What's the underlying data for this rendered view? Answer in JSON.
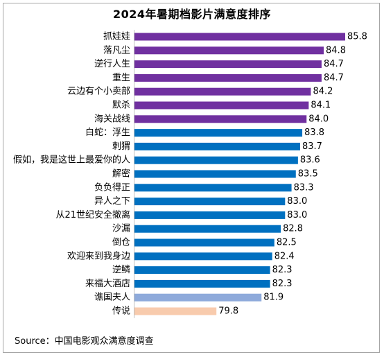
{
  "chart_data": {
    "type": "bar",
    "orientation": "horizontal",
    "title": "2024年暑期档影片满意度排序",
    "categories": [
      "抓娃娃",
      "落凡尘",
      "逆行人生",
      "重生",
      "云边有个小卖部",
      "默杀",
      "海关战线",
      "白蛇：浮生",
      "刺猬",
      "假如，我是这世上最爱你的人",
      "解密",
      "负负得正",
      "异人之下",
      "从21世纪安全撤离",
      "沙漏",
      "倒仓",
      "欢迎来到我身边",
      "逆鳞",
      "来福大酒店",
      "谯国夫人",
      "传说"
    ],
    "values": [
      85.8,
      84.8,
      84.7,
      84.7,
      84.2,
      84.1,
      84.0,
      83.8,
      83.7,
      83.6,
      83.5,
      83.3,
      83.0,
      83.0,
      82.8,
      82.5,
      82.4,
      82.3,
      82.3,
      81.9,
      79.8
    ],
    "value_labels": [
      "85.8",
      "84.8",
      "84.7",
      "84.7",
      "84.2",
      "84.1",
      "84.0",
      "83.8",
      "83.7",
      "83.6",
      "83.5",
      "83.3",
      "83.0",
      "83.0",
      "82.8",
      "82.5",
      "82.4",
      "82.3",
      "82.3",
      "81.9",
      "79.8"
    ],
    "colors": [
      "#7030a0",
      "#7030a0",
      "#7030a0",
      "#7030a0",
      "#7030a0",
      "#7030a0",
      "#7030a0",
      "#0070c0",
      "#0070c0",
      "#0070c0",
      "#0070c0",
      "#0070c0",
      "#0070c0",
      "#0070c0",
      "#0070c0",
      "#0070c0",
      "#0070c0",
      "#0070c0",
      "#0070c0",
      "#8eaadb",
      "#f8cbad"
    ],
    "xlim": [
      75.95,
      85.8
    ],
    "grid": false,
    "legend": "none",
    "source": "Source：中国电影观众满意度调查"
  }
}
